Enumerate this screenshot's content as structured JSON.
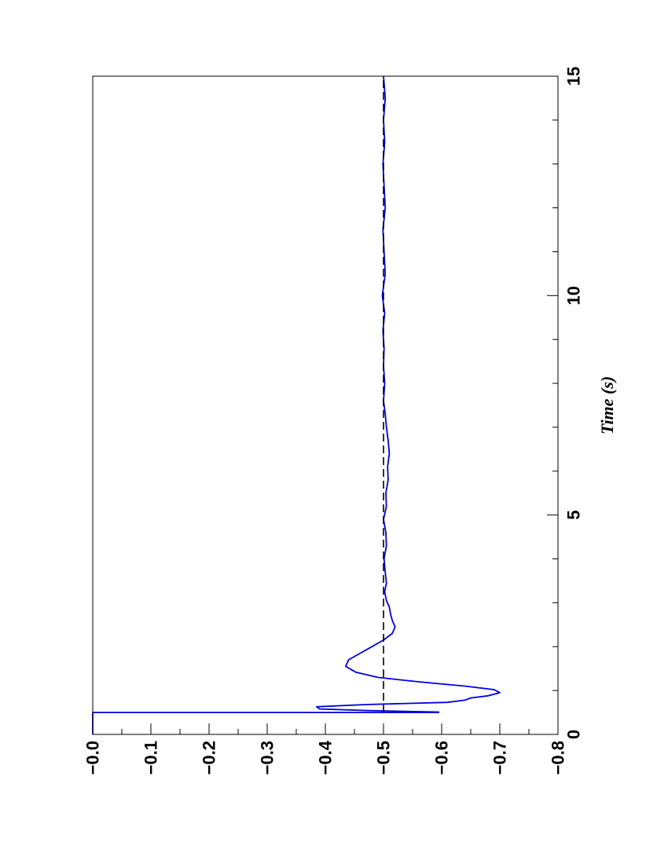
{
  "chart_data": {
    "type": "line",
    "orientation": "rotated-90-ccw",
    "xlabel": "Time (s)",
    "ylabel": "",
    "xlim": [
      0,
      15
    ],
    "ylim": [
      -0.8,
      0.0
    ],
    "x_ticks_major": [
      0,
      5,
      10,
      15
    ],
    "x_tick_labels": [
      "0",
      "5",
      "10",
      "15"
    ],
    "x_ticks_minor_step": 1,
    "y_ticks": [
      0.0,
      -0.1,
      -0.2,
      -0.3,
      -0.4,
      -0.5,
      -0.6,
      -0.7,
      -0.8
    ],
    "y_tick_labels": [
      "−0.0",
      "−0.1",
      "−0.2",
      "−0.3",
      "−0.4",
      "−0.5",
      "−0.6",
      "−0.7",
      "−0.8"
    ],
    "grid": false,
    "series": [
      {
        "color": "#0000dd",
        "style": "solid",
        "x": [
          0.0,
          0.5,
          0.5,
          0.51,
          0.54,
          0.58,
          0.63,
          0.68,
          0.73,
          0.78,
          0.83,
          0.88,
          0.95,
          1.02,
          1.1,
          1.2,
          1.3,
          1.42,
          1.55,
          1.7,
          1.85,
          2.0,
          2.15,
          2.3,
          2.45,
          2.6,
          2.75,
          2.9,
          3.05,
          3.25,
          3.45,
          3.7,
          4.0,
          4.3,
          4.6,
          4.9,
          5.2,
          5.5,
          5.8,
          6.1,
          6.4,
          6.7,
          7.0,
          7.3,
          7.6,
          8.0,
          8.4,
          8.8,
          9.2,
          9.6,
          10.0,
          10.5,
          11.0,
          11.5,
          12.0,
          12.5,
          13.0,
          13.5,
          14.0,
          14.5,
          15.0
        ],
        "y": [
          0.0,
          0.0,
          -0.595,
          -0.595,
          -0.48,
          -0.39,
          -0.385,
          -0.47,
          -0.61,
          -0.64,
          -0.65,
          -0.68,
          -0.7,
          -0.69,
          -0.64,
          -0.56,
          -0.49,
          -0.452,
          -0.435,
          -0.44,
          -0.46,
          -0.48,
          -0.5,
          -0.515,
          -0.52,
          -0.515,
          -0.512,
          -0.51,
          -0.505,
          -0.502,
          -0.505,
          -0.503,
          -0.501,
          -0.505,
          -0.504,
          -0.5,
          -0.505,
          -0.504,
          -0.508,
          -0.507,
          -0.51,
          -0.508,
          -0.505,
          -0.503,
          -0.5,
          -0.502,
          -0.5,
          -0.501,
          -0.499,
          -0.502,
          -0.498,
          -0.503,
          -0.501,
          -0.499,
          -0.503,
          -0.501,
          -0.499,
          -0.502,
          -0.5,
          -0.503,
          -0.5
        ]
      },
      {
        "color": "#000000",
        "style": "dashed",
        "x": [
          0.5,
          15.0
        ],
        "y": [
          -0.5,
          -0.5
        ]
      }
    ]
  }
}
